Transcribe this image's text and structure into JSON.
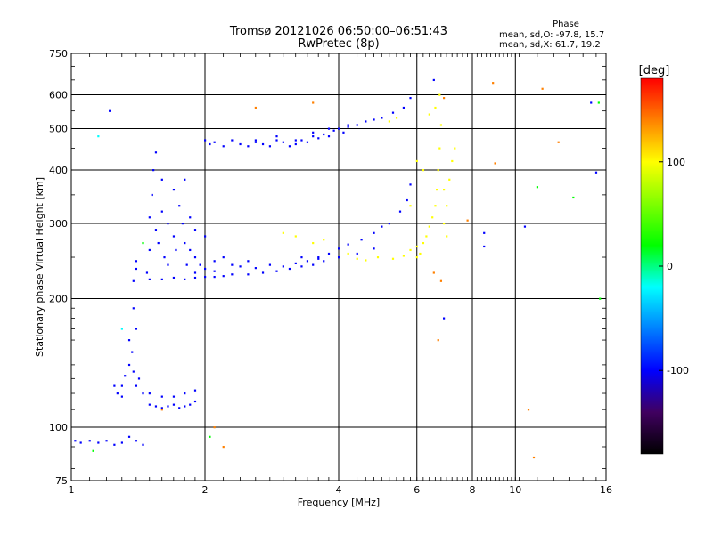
{
  "header": {
    "title": "Tromsø 20121026 06:50:00–06:51:43",
    "subtitle": "RwPretec (8p)",
    "phase_title": "Phase",
    "phase_line1": "mean, sd,O: -97.8, 15.7",
    "phase_line2": "mean, sd,X:  61.7, 19.2"
  },
  "colorbar": {
    "label": "[deg]",
    "ticks": [
      {
        "label": "100",
        "value": 100
      },
      {
        "label": "0",
        "value": 0
      },
      {
        "label": "-100",
        "value": -100
      }
    ],
    "range": [
      -180,
      180
    ],
    "colors": [
      "#ff0000",
      "#ff8000",
      "#ffff00",
      "#80ff00",
      "#00ff00",
      "#00ffff",
      "#0080ff",
      "#0000ff",
      "#400060",
      "#000000"
    ]
  },
  "chart_data": {
    "type": "scatter",
    "title": "Tromsø 20121026 06:50:00–06:51:43",
    "subtitle": "RwPretec (8p)",
    "xlabel": "Frequency [MHz]",
    "ylabel": "Stationary phase Virtual Height [km]",
    "xscale": "log",
    "yscale": "log",
    "xlim": [
      1,
      16
    ],
    "ylim": [
      75,
      750
    ],
    "xticks": [
      {
        "label": "1",
        "value": 1
      },
      {
        "label": "2",
        "value": 2
      },
      {
        "label": "4",
        "value": 4
      },
      {
        "label": "6",
        "value": 6
      },
      {
        "label": "8",
        "value": 8
      },
      {
        "label": "10",
        "value": 10
      },
      {
        "label": "16",
        "value": 16
      }
    ],
    "yticks": [
      {
        "label": "75",
        "value": 75
      },
      {
        "label": "100",
        "value": 100
      },
      {
        "label": "200",
        "value": 200
      },
      {
        "label": "300",
        "value": 300
      },
      {
        "label": "400",
        "value": 400
      },
      {
        "label": "500",
        "value": 500
      },
      {
        "label": "600",
        "value": 600
      },
      {
        "label": "750",
        "value": 750
      }
    ],
    "grid": true,
    "color_scale": "phase [deg]",
    "series": [
      {
        "phase": -100,
        "points": [
          [
            2.0,
            470
          ],
          [
            2.05,
            460
          ],
          [
            2.1,
            465
          ],
          [
            2.2,
            455
          ],
          [
            2.3,
            470
          ],
          [
            2.4,
            460
          ],
          [
            2.5,
            455
          ],
          [
            2.6,
            465
          ],
          [
            2.7,
            460
          ],
          [
            2.8,
            455
          ],
          [
            2.9,
            470
          ],
          [
            3.0,
            465
          ],
          [
            3.1,
            455
          ],
          [
            3.2,
            460
          ],
          [
            3.3,
            470
          ],
          [
            3.4,
            465
          ],
          [
            3.5,
            480
          ],
          [
            3.6,
            475
          ],
          [
            3.7,
            485
          ],
          [
            3.8,
            480
          ],
          [
            3.9,
            495
          ],
          [
            4.0,
            500
          ],
          [
            4.1,
            490
          ],
          [
            4.2,
            505
          ],
          [
            4.4,
            510
          ],
          [
            4.6,
            520
          ],
          [
            4.8,
            525
          ],
          [
            5.0,
            530
          ],
          [
            5.3,
            545
          ],
          [
            5.6,
            560
          ],
          [
            5.8,
            590
          ],
          [
            1.48,
            230
          ],
          [
            1.5,
            260
          ],
          [
            1.5,
            310
          ],
          [
            1.52,
            350
          ],
          [
            1.53,
            400
          ],
          [
            1.55,
            440
          ],
          [
            1.55,
            290
          ],
          [
            1.57,
            270
          ],
          [
            1.6,
            320
          ],
          [
            1.6,
            380
          ],
          [
            1.62,
            250
          ],
          [
            1.65,
            300
          ],
          [
            1.65,
            240
          ],
          [
            1.7,
            360
          ],
          [
            1.7,
            280
          ],
          [
            1.72,
            260
          ],
          [
            1.75,
            330
          ],
          [
            1.78,
            300
          ],
          [
            1.8,
            380
          ],
          [
            1.8,
            270
          ],
          [
            1.82,
            240
          ],
          [
            1.85,
            310
          ],
          [
            1.85,
            260
          ],
          [
            1.9,
            290
          ],
          [
            1.9,
            250
          ],
          [
            1.95,
            240
          ],
          [
            2.0,
            280
          ],
          [
            2.0,
            235
          ],
          [
            2.1,
            245
          ],
          [
            2.2,
            250
          ],
          [
            2.3,
            240
          ],
          [
            2.4,
            238
          ],
          [
            2.5,
            245
          ],
          [
            2.6,
            236
          ],
          [
            2.8,
            240
          ],
          [
            3.0,
            238
          ],
          [
            3.2,
            242
          ],
          [
            3.4,
            245
          ],
          [
            3.6,
            250
          ],
          [
            3.8,
            255
          ],
          [
            4.0,
            262
          ],
          [
            4.2,
            268
          ],
          [
            4.5,
            275
          ],
          [
            4.8,
            285
          ],
          [
            5.0,
            295
          ],
          [
            5.2,
            300
          ],
          [
            5.5,
            320
          ],
          [
            5.7,
            340
          ],
          [
            5.8,
            370
          ],
          [
            1.5,
            222
          ],
          [
            1.6,
            222
          ],
          [
            1.7,
            224
          ],
          [
            1.8,
            222
          ],
          [
            1.9,
            224
          ],
          [
            2.0,
            225
          ],
          [
            2.1,
            225
          ],
          [
            2.2,
            226
          ],
          [
            2.3,
            228
          ],
          [
            2.5,
            228
          ],
          [
            2.7,
            230
          ],
          [
            2.9,
            232
          ],
          [
            3.1,
            235
          ],
          [
            3.3,
            238
          ],
          [
            3.5,
            240
          ],
          [
            3.7,
            245
          ],
          [
            4.0,
            250
          ],
          [
            1.3,
            125
          ],
          [
            1.32,
            132
          ],
          [
            1.35,
            140
          ],
          [
            1.37,
            150
          ],
          [
            1.38,
            135
          ],
          [
            1.4,
            125
          ],
          [
            1.42,
            130
          ],
          [
            1.45,
            120
          ],
          [
            1.27,
            120
          ],
          [
            1.25,
            125
          ],
          [
            1.3,
            118
          ],
          [
            1.35,
            160
          ],
          [
            1.5,
            113
          ],
          [
            1.55,
            112
          ],
          [
            1.6,
            111
          ],
          [
            1.65,
            112
          ],
          [
            1.7,
            113
          ],
          [
            1.75,
            111
          ],
          [
            1.8,
            112
          ],
          [
            1.85,
            113
          ],
          [
            1.9,
            115
          ],
          [
            1.5,
            120
          ],
          [
            1.6,
            118
          ],
          [
            1.7,
            118
          ],
          [
            1.8,
            120
          ],
          [
            1.9,
            122
          ],
          [
            1.02,
            93
          ],
          [
            1.05,
            92
          ],
          [
            1.1,
            93
          ],
          [
            1.15,
            92
          ],
          [
            1.2,
            93
          ],
          [
            1.25,
            91
          ],
          [
            1.3,
            92
          ],
          [
            1.35,
            95
          ],
          [
            1.4,
            93
          ],
          [
            1.45,
            91
          ],
          [
            1.38,
            220
          ],
          [
            1.4,
            235
          ],
          [
            1.4,
            245
          ],
          [
            1.22,
            550
          ],
          [
            8.5,
            265
          ],
          [
            8.5,
            285
          ],
          [
            15.2,
            395
          ],
          [
            14.8,
            575
          ],
          [
            10.5,
            295
          ]
        ]
      },
      {
        "phase": -115,
        "points": [
          [
            2.6,
            470
          ],
          [
            2.9,
            480
          ],
          [
            3.2,
            470
          ],
          [
            3.5,
            490
          ],
          [
            3.8,
            500
          ],
          [
            4.2,
            510
          ],
          [
            3.3,
            250
          ],
          [
            3.6,
            248
          ],
          [
            4.0,
            250
          ],
          [
            4.4,
            255
          ],
          [
            4.8,
            262
          ],
          [
            1.9,
            230
          ],
          [
            2.1,
            232
          ],
          [
            1.38,
            190
          ],
          [
            1.4,
            170
          ],
          [
            6.55,
            650
          ],
          [
            6.9,
            180
          ]
        ]
      },
      {
        "phase": 100,
        "points": [
          [
            5.8,
            260
          ],
          [
            6.0,
            265
          ],
          [
            6.2,
            270
          ],
          [
            6.3,
            280
          ],
          [
            6.4,
            295
          ],
          [
            6.5,
            310
          ],
          [
            6.6,
            330
          ],
          [
            6.65,
            360
          ],
          [
            6.7,
            400
          ],
          [
            6.75,
            450
          ],
          [
            6.8,
            510
          ],
          [
            6.75,
            600
          ],
          [
            6.6,
            560
          ],
          [
            6.4,
            540
          ],
          [
            5.2,
            520
          ],
          [
            5.4,
            530
          ],
          [
            6.1,
            255
          ],
          [
            6.0,
            250
          ],
          [
            5.6,
            252
          ],
          [
            5.3,
            248
          ],
          [
            4.9,
            250
          ],
          [
            4.6,
            246
          ],
          [
            4.4,
            248
          ],
          [
            4.2,
            255
          ],
          [
            6.9,
            300
          ],
          [
            7.0,
            330
          ],
          [
            7.1,
            380
          ],
          [
            7.2,
            420
          ],
          [
            7.3,
            450
          ],
          [
            7.0,
            280
          ],
          [
            6.9,
            360
          ],
          [
            3.0,
            285
          ],
          [
            3.2,
            280
          ],
          [
            3.5,
            270
          ],
          [
            3.7,
            275
          ],
          [
            6.2,
            400
          ],
          [
            6.0,
            420
          ],
          [
            5.8,
            330
          ]
        ]
      },
      {
        "phase": 130,
        "points": [
          [
            2.6,
            560
          ],
          [
            3.5,
            575
          ],
          [
            6.55,
            230
          ],
          [
            6.8,
            220
          ],
          [
            6.9,
            590
          ],
          [
            8.9,
            640
          ],
          [
            11.5,
            620
          ],
          [
            12.5,
            465
          ],
          [
            9.0,
            415
          ],
          [
            10.7,
            110
          ],
          [
            11.0,
            85
          ],
          [
            2.2,
            90
          ],
          [
            2.1,
            100
          ],
          [
            1.6,
            110
          ],
          [
            6.7,
            160
          ],
          [
            7.8,
            305
          ]
        ]
      },
      {
        "phase": 40,
        "points": [
          [
            1.45,
            270
          ],
          [
            1.12,
            88
          ],
          [
            2.05,
            95
          ]
        ]
      },
      {
        "phase": 20,
        "points": [
          [
            15.4,
            575
          ],
          [
            15.5,
            200
          ],
          [
            13.5,
            345
          ],
          [
            11.2,
            365
          ]
        ]
      },
      {
        "phase": -10,
        "points": [
          [
            1.3,
            170
          ],
          [
            1.15,
            480
          ]
        ]
      }
    ]
  }
}
